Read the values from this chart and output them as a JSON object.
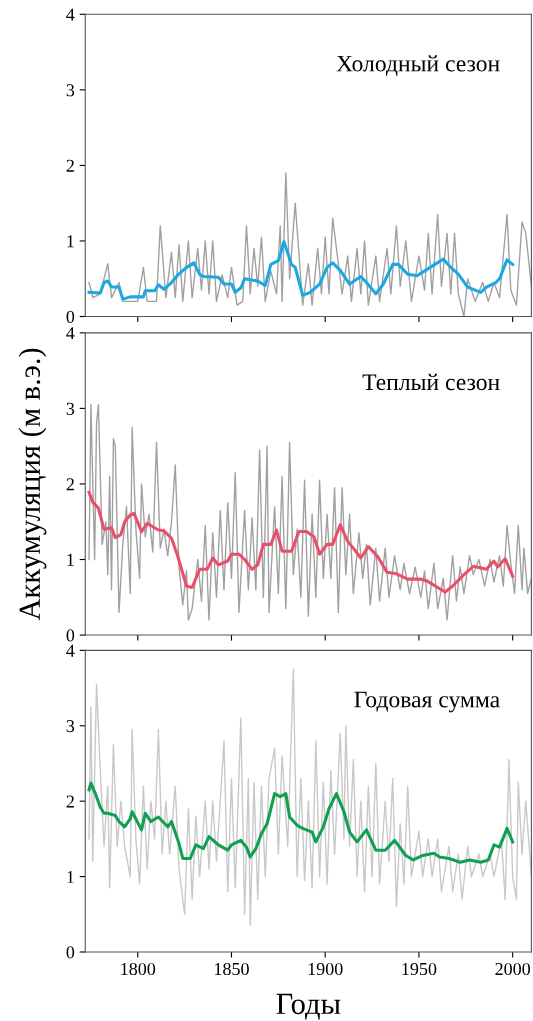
{
  "chart_data": [
    {
      "type": "line",
      "title": "Холодный сезон",
      "xlim": [
        1772,
        2010
      ],
      "ylim": [
        0,
        4
      ],
      "xticks": [
        1800,
        1850,
        1900,
        1950,
        2000
      ],
      "yticks": [
        0,
        1,
        2,
        3,
        4
      ],
      "tick_labels": "y",
      "grid": false,
      "legend": false,
      "series": [
        {
          "color": "#a0a0a0",
          "x": [
            1774,
            1776,
            1780,
            1784,
            1786,
            1790,
            1792,
            1800,
            1803,
            1805,
            1810,
            1812,
            1815,
            1818,
            1820,
            1822,
            1824,
            1827,
            1829,
            1832,
            1834,
            1836,
            1838,
            1840,
            1842,
            1845,
            1848,
            1850,
            1853,
            1856,
            1858,
            1860,
            1862,
            1864,
            1866,
            1868,
            1871,
            1874,
            1876,
            1877,
            1879,
            1881,
            1884,
            1888,
            1891,
            1893,
            1896,
            1898,
            1900,
            1902,
            1904,
            1906,
            1909,
            1912,
            1914,
            1917,
            1919,
            1921,
            1923,
            1927,
            1929,
            1933,
            1935,
            1938,
            1940,
            1943,
            1946,
            1950,
            1953,
            1955,
            1957,
            1960,
            1962,
            1965,
            1967,
            1969,
            1971,
            1974,
            1976,
            1980,
            1984,
            1987,
            1990,
            1993,
            1997,
            1999,
            2002,
            2005,
            2007,
            2010
          ],
          "values": [
            0.45,
            0.25,
            0.3,
            0.7,
            0.25,
            0.45,
            0.2,
            0.2,
            0.65,
            0.2,
            0.2,
            1.2,
            0.25,
            0.85,
            0.25,
            0.95,
            0.2,
            1.0,
            0.25,
            0.9,
            0.35,
            1.0,
            0.3,
            1.0,
            0.2,
            0.55,
            0.25,
            0.65,
            0.15,
            0.2,
            1.2,
            0.3,
            0.9,
            0.4,
            1.05,
            0.2,
            0.6,
            0.3,
            1.2,
            0.2,
            1.9,
            0.5,
            1.5,
            0.15,
            0.7,
            0.15,
            0.9,
            0.3,
            1.05,
            0.3,
            1.3,
            0.9,
            0.3,
            0.8,
            0.2,
            0.9,
            0.3,
            1.0,
            0.15,
            0.8,
            0.2,
            0.9,
            0.3,
            1.2,
            0.4,
            1.0,
            0.2,
            0.8,
            0.35,
            1.1,
            0.3,
            1.35,
            0.4,
            1.1,
            0.3,
            1.1,
            0.3,
            0.0,
            0.5,
            0.2,
            0.45,
            0.2,
            0.45,
            0.25,
            1.35,
            0.35,
            0.15,
            1.25,
            1.1,
            0.4
          ]
        },
        {
          "color": "#1ba8e0",
          "x": [
            1774,
            1780,
            1782,
            1784,
            1786,
            1790,
            1792,
            1796,
            1803,
            1804,
            1809,
            1811,
            1814,
            1818,
            1821,
            1826,
            1830,
            1833,
            1835,
            1843,
            1846,
            1850,
            1852,
            1855,
            1857,
            1864,
            1868,
            1871,
            1875,
            1878,
            1882,
            1884,
            1888,
            1892,
            1897,
            1901,
            1904,
            1908,
            1913,
            1919,
            1922,
            1927,
            1931,
            1936,
            1939,
            1944,
            1949,
            1956,
            1963,
            1967,
            1971,
            1976,
            1983,
            1986,
            1991,
            1993,
            1997,
            2000
          ],
          "values": [
            0.32,
            0.31,
            0.45,
            0.47,
            0.39,
            0.39,
            0.23,
            0.26,
            0.26,
            0.34,
            0.34,
            0.42,
            0.36,
            0.45,
            0.54,
            0.65,
            0.71,
            0.56,
            0.53,
            0.52,
            0.43,
            0.43,
            0.32,
            0.38,
            0.5,
            0.47,
            0.41,
            0.69,
            0.74,
            0.99,
            0.69,
            0.65,
            0.28,
            0.32,
            0.43,
            0.65,
            0.71,
            0.61,
            0.43,
            0.53,
            0.45,
            0.3,
            0.43,
            0.69,
            0.69,
            0.56,
            0.54,
            0.65,
            0.76,
            0.65,
            0.56,
            0.39,
            0.32,
            0.39,
            0.45,
            0.5,
            0.75,
            0.69
          ]
        }
      ]
    },
    {
      "type": "line",
      "title": "Теплый сезон",
      "ylabel": "Аккумуляция (м в.э.)",
      "xlim": [
        1772,
        2010
      ],
      "ylim": [
        0,
        4
      ],
      "xticks": [
        1800,
        1850,
        1900,
        1950,
        2000
      ],
      "yticks": [
        0,
        1,
        2,
        3,
        4
      ],
      "tick_labels": "y",
      "grid": false,
      "legend": false,
      "series": [
        {
          "color": "#a0a0a0",
          "x": [
            1774,
            1775,
            1777,
            1778,
            1779,
            1781,
            1783,
            1784,
            1785,
            1786,
            1787,
            1788,
            1790,
            1792,
            1794,
            1796,
            1797,
            1799,
            1801,
            1802,
            1804,
            1806,
            1808,
            1810,
            1812,
            1814,
            1816,
            1818,
            1820,
            1822,
            1824,
            1826,
            1827,
            1829,
            1832,
            1834,
            1836,
            1838,
            1840,
            1842,
            1844,
            1846,
            1848,
            1850,
            1852,
            1854,
            1857,
            1859,
            1861,
            1863,
            1865,
            1867,
            1869,
            1870,
            1873,
            1875,
            1877,
            1879,
            1881,
            1883,
            1885,
            1887,
            1889,
            1891,
            1893,
            1895,
            1897,
            1899,
            1901,
            1903,
            1905,
            1907,
            1909,
            1911,
            1913,
            1915,
            1918,
            1920,
            1922,
            1924,
            1927,
            1929,
            1932,
            1934,
            1937,
            1940,
            1942,
            1945,
            1948,
            1951,
            1953,
            1955,
            1958,
            1960,
            1963,
            1965,
            1968,
            1970,
            1972,
            1974,
            1977,
            1979,
            1982,
            1985,
            1988,
            1990,
            1993,
            1995,
            1997,
            1999,
            2001,
            2003,
            2005,
            2006,
            2008,
            2010
          ],
          "values": [
            1.0,
            3.05,
            1.0,
            2.8,
            3.05,
            1.2,
            1.5,
            0.8,
            2.1,
            0.6,
            2.6,
            2.5,
            0.3,
            1.2,
            1.7,
            0.55,
            2.75,
            1.4,
            0.75,
            2.0,
            1.3,
            1.6,
            1.1,
            2.55,
            1.15,
            1.4,
            1.05,
            1.5,
            2.25,
            0.9,
            0.4,
            0.85,
            0.2,
            0.35,
            1.0,
            0.45,
            1.45,
            0.2,
            1.35,
            0.5,
            1.65,
            0.6,
            1.75,
            0.75,
            2.15,
            0.3,
            1.65,
            0.6,
            1.55,
            0.6,
            2.45,
            0.5,
            2.5,
            0.3,
            1.7,
            0.55,
            2.1,
            0.35,
            2.55,
            0.8,
            1.4,
            0.5,
            2.05,
            0.25,
            1.6,
            0.5,
            2.05,
            0.75,
            1.6,
            0.75,
            1.95,
            0.3,
            1.95,
            0.8,
            1.6,
            0.55,
            1.35,
            0.75,
            1.2,
            0.4,
            1.15,
            0.45,
            1.15,
            0.5,
            1.05,
            0.6,
            0.95,
            0.55,
            0.9,
            0.5,
            0.85,
            0.35,
            0.95,
            0.35,
            0.75,
            0.2,
            1.05,
            0.45,
            0.9,
            0.55,
            1.05,
            0.8,
            1.0,
            0.65,
            1.0,
            0.7,
            1.05,
            0.65,
            1.45,
            0.95,
            0.55,
            1.45,
            0.6,
            1.15,
            0.55,
            0.75
          ]
        },
        {
          "color": "#e8506a",
          "x": [
            1774,
            1776,
            1779,
            1782,
            1786,
            1788,
            1791,
            1793,
            1796,
            1798,
            1802,
            1805,
            1811,
            1814,
            1818,
            1821,
            1826,
            1829,
            1833,
            1837,
            1840,
            1843,
            1848,
            1850,
            1854,
            1857,
            1861,
            1864,
            1867,
            1871,
            1874,
            1877,
            1882,
            1886,
            1890,
            1894,
            1897,
            1901,
            1904,
            1908,
            1912,
            1915,
            1919,
            1923,
            1928,
            1933,
            1938,
            1944,
            1951,
            1954,
            1960,
            1964,
            1968,
            1974,
            1979,
            1986,
            1990,
            1992,
            1996,
            2000
          ],
          "values": [
            1.89,
            1.76,
            1.68,
            1.4,
            1.42,
            1.29,
            1.33,
            1.5,
            1.59,
            1.61,
            1.37,
            1.48,
            1.39,
            1.38,
            1.28,
            1.07,
            0.65,
            0.63,
            0.87,
            0.87,
            1.02,
            0.93,
            0.98,
            1.07,
            1.07,
            1.0,
            0.87,
            0.93,
            1.2,
            1.2,
            1.39,
            1.11,
            1.11,
            1.37,
            1.37,
            1.3,
            1.07,
            1.2,
            1.2,
            1.46,
            1.24,
            1.15,
            1.02,
            1.17,
            1.04,
            0.83,
            0.81,
            0.74,
            0.74,
            0.72,
            0.63,
            0.57,
            0.65,
            0.8,
            0.91,
            0.87,
            0.98,
            0.9,
            1.01,
            0.78
          ]
        }
      ]
    },
    {
      "type": "line",
      "title": "Годовая сумма",
      "xlabel": "Годы",
      "xlim": [
        1772,
        2010
      ],
      "ylim": [
        0,
        4
      ],
      "xticks": [
        1800,
        1850,
        1900,
        1950,
        2000
      ],
      "yticks": [
        0,
        1,
        2,
        3,
        4
      ],
      "grid": false,
      "legend": false,
      "series": [
        {
          "color": "#c8c8c8",
          "x": [
            1774,
            1775,
            1776,
            1778,
            1780,
            1782,
            1784,
            1785,
            1787,
            1789,
            1791,
            1793,
            1796,
            1797,
            1799,
            1801,
            1803,
            1805,
            1807,
            1809,
            1811,
            1813,
            1815,
            1817,
            1820,
            1822,
            1825,
            1827,
            1829,
            1831,
            1833,
            1836,
            1838,
            1840,
            1842,
            1846,
            1848,
            1850,
            1852,
            1855,
            1857,
            1859,
            1860,
            1862,
            1864,
            1866,
            1868,
            1870,
            1873,
            1875,
            1877,
            1880,
            1883,
            1885,
            1887,
            1889,
            1891,
            1893,
            1895,
            1897,
            1899,
            1901,
            1903,
            1905,
            1908,
            1910,
            1911,
            1913,
            1915,
            1917,
            1919,
            1921,
            1923,
            1925,
            1927,
            1929,
            1932,
            1934,
            1936,
            1938,
            1940,
            1942,
            1944,
            1946,
            1950,
            1952,
            1955,
            1957,
            1960,
            1962,
            1966,
            1968,
            1971,
            1973,
            1976,
            1978,
            1982,
            1984,
            1988,
            1990,
            1994,
            1996,
            1998,
            2000,
            2002,
            2003,
            2005,
            2007,
            2010
          ],
          "values": [
            1.5,
            3.25,
            1.2,
            3.55,
            2.4,
            1.4,
            2.2,
            0.85,
            2.75,
            1.4,
            2.0,
            1.4,
            1.0,
            2.95,
            1.5,
            0.9,
            2.2,
            1.1,
            2.0,
            1.5,
            2.95,
            1.3,
            2.0,
            1.3,
            2.2,
            1.1,
            0.5,
            1.9,
            0.7,
            1.8,
            1.0,
            2.0,
            1.1,
            2.0,
            1.2,
            2.8,
            0.8,
            2.3,
            0.85,
            3.1,
            0.5,
            2.3,
            0.35,
            2.25,
            0.7,
            2.2,
            1.0,
            2.3,
            2.7,
            1.3,
            2.6,
            1.4,
            3.75,
            1.0,
            2.3,
            0.95,
            2.0,
            0.85,
            2.8,
            1.0,
            2.25,
            0.9,
            2.4,
            1.3,
            2.9,
            1.5,
            3.0,
            1.4,
            2.55,
            1.0,
            2.0,
            0.8,
            2.2,
            1.0,
            2.5,
            0.9,
            2.0,
            1.2,
            2.3,
            0.6,
            1.7,
            0.9,
            2.2,
            1.0,
            1.6,
            1.0,
            1.5,
            1.0,
            1.5,
            0.8,
            1.4,
            0.8,
            1.3,
            0.7,
            1.4,
            1.0,
            1.3,
            1.0,
            1.3,
            1.0,
            1.5,
            0.7,
            2.55,
            1.0,
            0.7,
            2.25,
            1.3,
            2.0,
            1.0
          ]
        },
        {
          "color": "#10a050",
          "x": [
            1774,
            1775,
            1778,
            1780,
            1782,
            1784,
            1788,
            1790,
            1793,
            1796,
            1797,
            1802,
            1804,
            1807,
            1811,
            1816,
            1818,
            1822,
            1824,
            1828,
            1831,
            1835,
            1838,
            1843,
            1848,
            1850,
            1855,
            1858,
            1860,
            1863,
            1866,
            1869,
            1873,
            1876,
            1879,
            1881,
            1885,
            1888,
            1893,
            1895,
            1899,
            1902,
            1906,
            1910,
            1913,
            1917,
            1922,
            1927,
            1932,
            1937,
            1943,
            1947,
            1952,
            1958,
            1961,
            1966,
            1972,
            1977,
            1983,
            1987,
            1990,
            1993,
            1997,
            2000
          ],
          "values": [
            2.15,
            2.24,
            2.06,
            1.92,
            1.84,
            1.84,
            1.81,
            1.73,
            1.66,
            1.77,
            1.86,
            1.62,
            1.84,
            1.73,
            1.79,
            1.66,
            1.73,
            1.44,
            1.24,
            1.24,
            1.42,
            1.37,
            1.53,
            1.42,
            1.35,
            1.42,
            1.48,
            1.39,
            1.26,
            1.37,
            1.57,
            1.7,
            2.1,
            2.06,
            2.1,
            1.79,
            1.68,
            1.64,
            1.59,
            1.46,
            1.66,
            1.9,
            2.1,
            1.86,
            1.59,
            1.46,
            1.62,
            1.35,
            1.35,
            1.48,
            1.28,
            1.22,
            1.28,
            1.31,
            1.26,
            1.24,
            1.19,
            1.22,
            1.19,
            1.22,
            1.42,
            1.39,
            1.64,
            1.46
          ]
        }
      ]
    }
  ]
}
